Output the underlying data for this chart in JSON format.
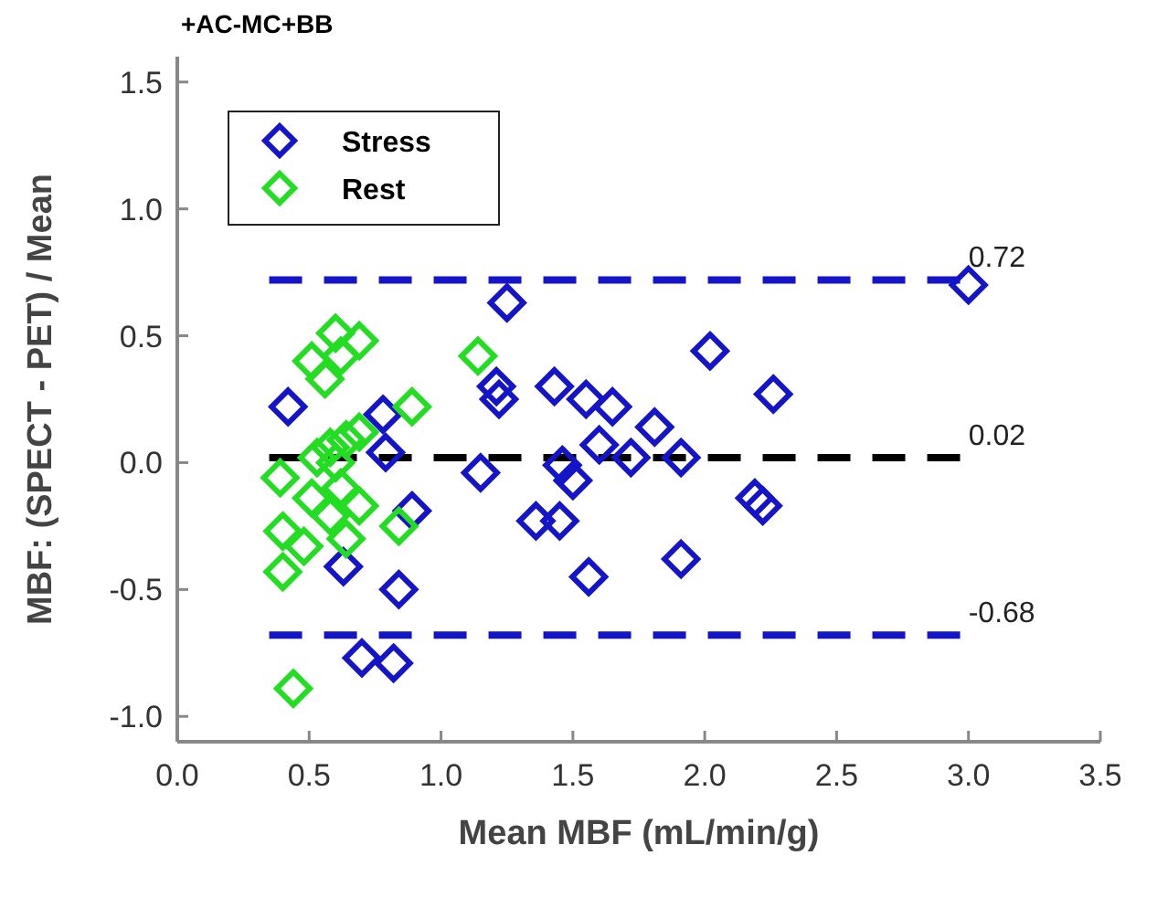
{
  "chart_data": {
    "type": "scatter",
    "title": "+AC-MC+BB",
    "xlabel": "Mean MBF (mL/min/g)",
    "ylabel": "MBF: (SPECT - PET) / Mean",
    "xlim": [
      0,
      3.5
    ],
    "xticks": [
      {
        "value": 0,
        "label": "0.0"
      },
      {
        "value": 0.5,
        "label": "0.5"
      },
      {
        "value": 1,
        "label": "1.0"
      },
      {
        "value": 1.5,
        "label": "1.5"
      },
      {
        "value": 2,
        "label": "2.0"
      },
      {
        "value": 2.5,
        "label": "2.5"
      },
      {
        "value": 3,
        "label": "3.0"
      },
      {
        "value": 3.5,
        "label": "3.5"
      }
    ],
    "ylim": [
      -1.1,
      1.6
    ],
    "yticks": [
      {
        "value": -1,
        "label": "-1.0"
      },
      {
        "value": -0.5,
        "label": "-0.5"
      },
      {
        "value": 0,
        "label": "0.0"
      },
      {
        "value": 0.5,
        "label": "0.5"
      },
      {
        "value": 1,
        "label": "1.0"
      },
      {
        "value": 1.5,
        "label": "1.5"
      }
    ],
    "grid": false,
    "legend": "top left",
    "marker": "diamond",
    "series": [
      {
        "name": "Stress",
        "color": "#1414c8",
        "x": [
          0.42,
          0.78,
          0.79,
          0.89,
          0.63,
          0.84,
          0.7,
          0.82,
          1.25,
          1.21,
          1.22,
          1.15,
          1.43,
          1.55,
          1.65,
          1.81,
          1.6,
          1.72,
          1.91,
          1.46,
          1.5,
          1.36,
          1.45,
          1.56,
          1.91,
          2.02,
          2.26,
          2.19,
          2.22,
          3.0
        ],
        "values": [
          0.22,
          0.19,
          0.04,
          -0.19,
          -0.41,
          -0.5,
          -0.77,
          -0.79,
          0.63,
          0.3,
          0.25,
          -0.04,
          0.3,
          0.25,
          0.22,
          0.14,
          0.07,
          0.02,
          0.02,
          -0.01,
          -0.07,
          -0.23,
          -0.23,
          -0.45,
          -0.38,
          0.44,
          0.27,
          -0.14,
          -0.17,
          0.7
        ]
      },
      {
        "name": "Rest",
        "color": "#22dd22",
        "x": [
          0.6,
          0.69,
          0.51,
          0.56,
          0.62,
          0.89,
          0.69,
          0.64,
          0.58,
          0.53,
          0.39,
          0.51,
          0.58,
          0.69,
          0.4,
          0.48,
          0.64,
          0.84,
          0.4,
          0.44,
          1.14,
          0.6,
          0.62
        ],
        "values": [
          0.51,
          0.48,
          0.4,
          0.33,
          0.42,
          0.22,
          0.12,
          0.09,
          0.06,
          0.02,
          -0.06,
          -0.14,
          -0.21,
          -0.17,
          -0.27,
          -0.33,
          -0.3,
          -0.25,
          -0.43,
          -0.89,
          0.42,
          0.0,
          -0.1
        ]
      }
    ],
    "ref_lines": [
      {
        "axis": "y",
        "value": 0.72,
        "label": "0.72",
        "color": "#1414c8",
        "line_style": "dashed"
      },
      {
        "axis": "y",
        "value": 0.02,
        "label": "0.02",
        "color": "#000000",
        "line_style": "dashed"
      },
      {
        "axis": "y",
        "value": -0.68,
        "label": "-0.68",
        "color": "#1414c8",
        "line_style": "dashed"
      }
    ]
  }
}
